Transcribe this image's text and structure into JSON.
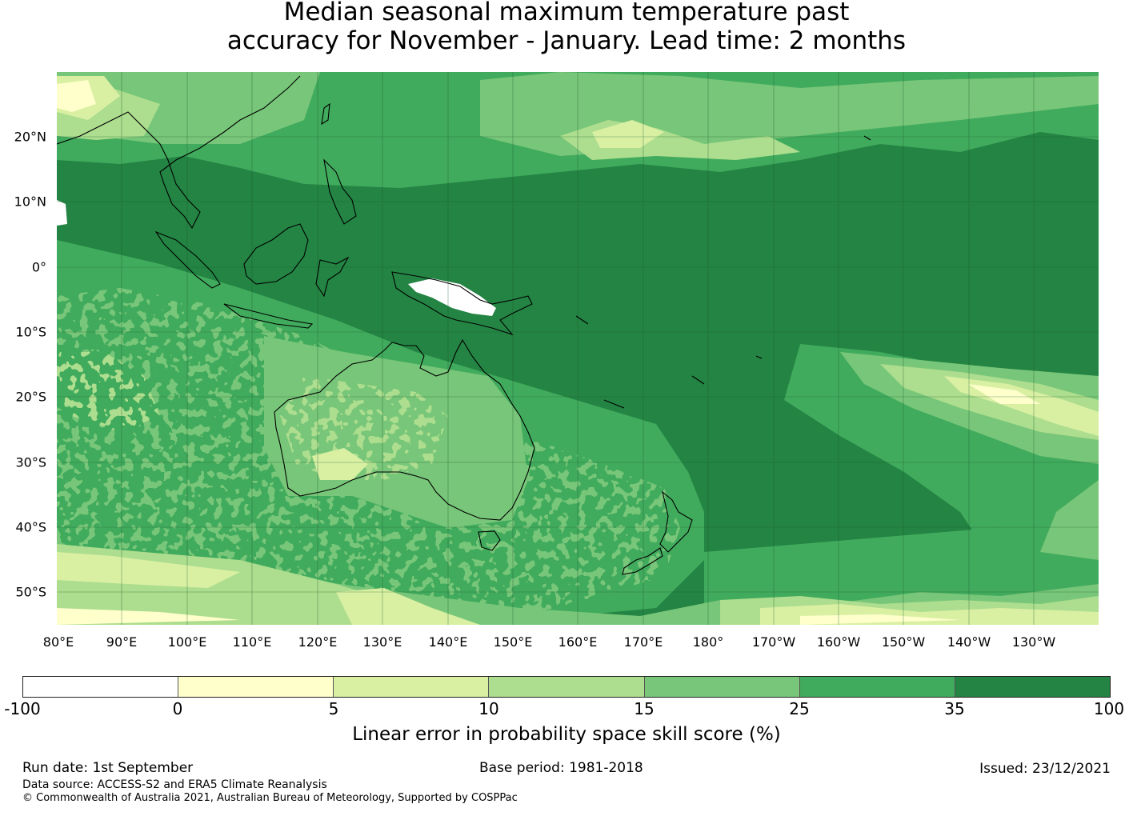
{
  "title": {
    "line1": "Median seasonal maximum temperature past",
    "line2": "accuracy for November - January. Lead time: 2 months"
  },
  "map": {
    "extent": {
      "lon_min": 80,
      "lon_max": 240,
      "lat_min": -55,
      "lat_max": 30
    },
    "lon_labels": [
      "80°E",
      "90°E",
      "100°E",
      "110°E",
      "120°E",
      "130°E",
      "140°E",
      "150°E",
      "160°E",
      "170°E",
      "180°",
      "170°W",
      "160°W",
      "150°W",
      "140°W",
      "130°W"
    ],
    "lat_labels": [
      "20°N",
      "10°N",
      "0°",
      "10°S",
      "20°S",
      "30°S",
      "40°S",
      "50°S"
    ],
    "gridlines": true
  },
  "colorbar": {
    "label": "Linear error in probability space skill score (%)",
    "ticks": [
      "-100",
      "0",
      "5",
      "10",
      "15",
      "25",
      "35",
      "100"
    ],
    "colors": [
      "#ffffff",
      "#ffffcc",
      "#d9f0a3",
      "#addd8e",
      "#78c679",
      "#41ab5d",
      "#238443"
    ]
  },
  "footer": {
    "run_date": "Run date: 1st September",
    "base_period": "Base period: 1981-2018",
    "issued": "Issued: 23/12/2021",
    "data_source": "Data source: ACCESS-S2 and ERA5 Climate Reanalysis",
    "copyright": "© Commonwealth of Australia 2021, Australian Bureau of Meteorology, Supported by COSPPac"
  }
}
